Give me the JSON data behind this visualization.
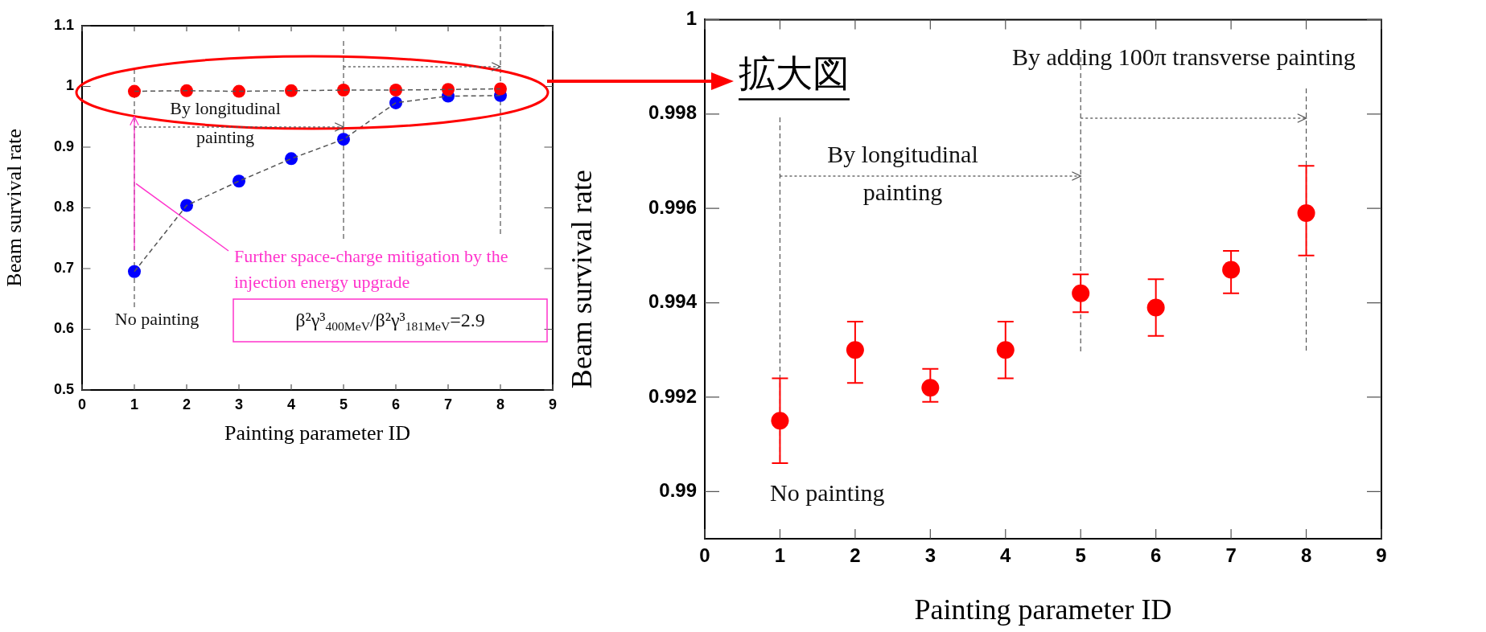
{
  "chart_data": [
    {
      "type": "scatter",
      "xlabel": "Painting parameter ID",
      "ylabel": "Beam survival rate",
      "x": [
        1,
        2,
        3,
        4,
        5,
        6,
        7,
        8
      ],
      "xlim": [
        0,
        9
      ],
      "xticks": [
        0,
        1,
        2,
        3,
        4,
        5,
        6,
        7,
        8,
        9
      ],
      "ylim": [
        0.5,
        1.1
      ],
      "yticks": [
        0.5,
        0.6,
        0.7,
        0.8,
        0.9,
        1,
        1.1
      ],
      "grid": false,
      "legend": false,
      "marker": "circle",
      "series": [
        {
          "type": "line",
          "color": "#555555",
          "line_style": "dashed",
          "marker": "none",
          "values": [
            0.992,
            0.993,
            0.992,
            0.993,
            0.994,
            0.994,
            0.995,
            0.996
          ]
        },
        {
          "type": "line",
          "color": "#555555",
          "line_style": "dashed",
          "marker": "none",
          "values": [
            0.695,
            0.804,
            0.844,
            0.881,
            0.913,
            0.973,
            0.984,
            0.985
          ]
        },
        {
          "color": "#ff0000",
          "values": [
            0.992,
            0.993,
            0.992,
            0.993,
            0.994,
            0.994,
            0.995,
            0.996
          ]
        },
        {
          "color": "#0000ff",
          "values": [
            0.695,
            0.804,
            0.844,
            0.881,
            0.913,
            0.973,
            0.984,
            0.985
          ]
        }
      ],
      "ref_lines": [
        {
          "axis": "x",
          "value": 1,
          "color": "#555555",
          "line_style": "dashed"
        },
        {
          "axis": "x",
          "value": 5,
          "color": "#555555",
          "line_style": "dashed"
        },
        {
          "axis": "x",
          "value": 8,
          "color": "#555555",
          "line_style": "dashed"
        }
      ],
      "annotations": [
        "By longitudinal painting",
        "No painting",
        {
          "text": "Further space-charge mitigation by the injection energy upgrade",
          "x": 1,
          "y": 0.84
        },
        "β²γ³$_{400MeV}$/β²γ³$_{181MeV}$=2.9"
      ]
    },
    {
      "type": "scatter",
      "xlabel": "Painting parameter ID",
      "ylabel": "Beam survival rate",
      "x": [
        1,
        2,
        3,
        4,
        5,
        6,
        7,
        8
      ],
      "xlim": [
        0,
        9
      ],
      "xticks": [
        0,
        1,
        2,
        3,
        4,
        5,
        6,
        7,
        8,
        9
      ],
      "ylim": [
        0.989,
        1
      ],
      "yticks": [
        0.99,
        0.992,
        0.994,
        0.996,
        0.998,
        1
      ],
      "grid": false,
      "legend": false,
      "marker": "circle",
      "series": [
        {
          "color": "#ff0000",
          "values": [
            0.9915,
            0.993,
            0.9922,
            0.993,
            0.9942,
            0.9939,
            0.9947,
            0.9959
          ],
          "errors": [
            [
              0.9906,
              0.9924
            ],
            [
              0.9923,
              0.9936
            ],
            [
              0.9919,
              0.9926
            ],
            [
              0.9924,
              0.9936
            ],
            [
              0.9938,
              0.9946
            ],
            [
              0.9933,
              0.9945
            ],
            [
              0.9942,
              0.9951
            ],
            [
              0.995,
              0.9969
            ]
          ]
        }
      ],
      "ref_lines": [
        {
          "axis": "x",
          "value": 1,
          "color": "#555555",
          "line_style": "dashed"
        },
        {
          "axis": "x",
          "value": 5,
          "color": "#555555",
          "line_style": "dashed"
        },
        {
          "axis": "x",
          "value": 8,
          "color": "#555555",
          "line_style": "dashed"
        }
      ],
      "annotations": [
        "拡大図",
        "By adding 100π transverse painting",
        "By longitudinal painting",
        "No painting"
      ]
    }
  ]
}
